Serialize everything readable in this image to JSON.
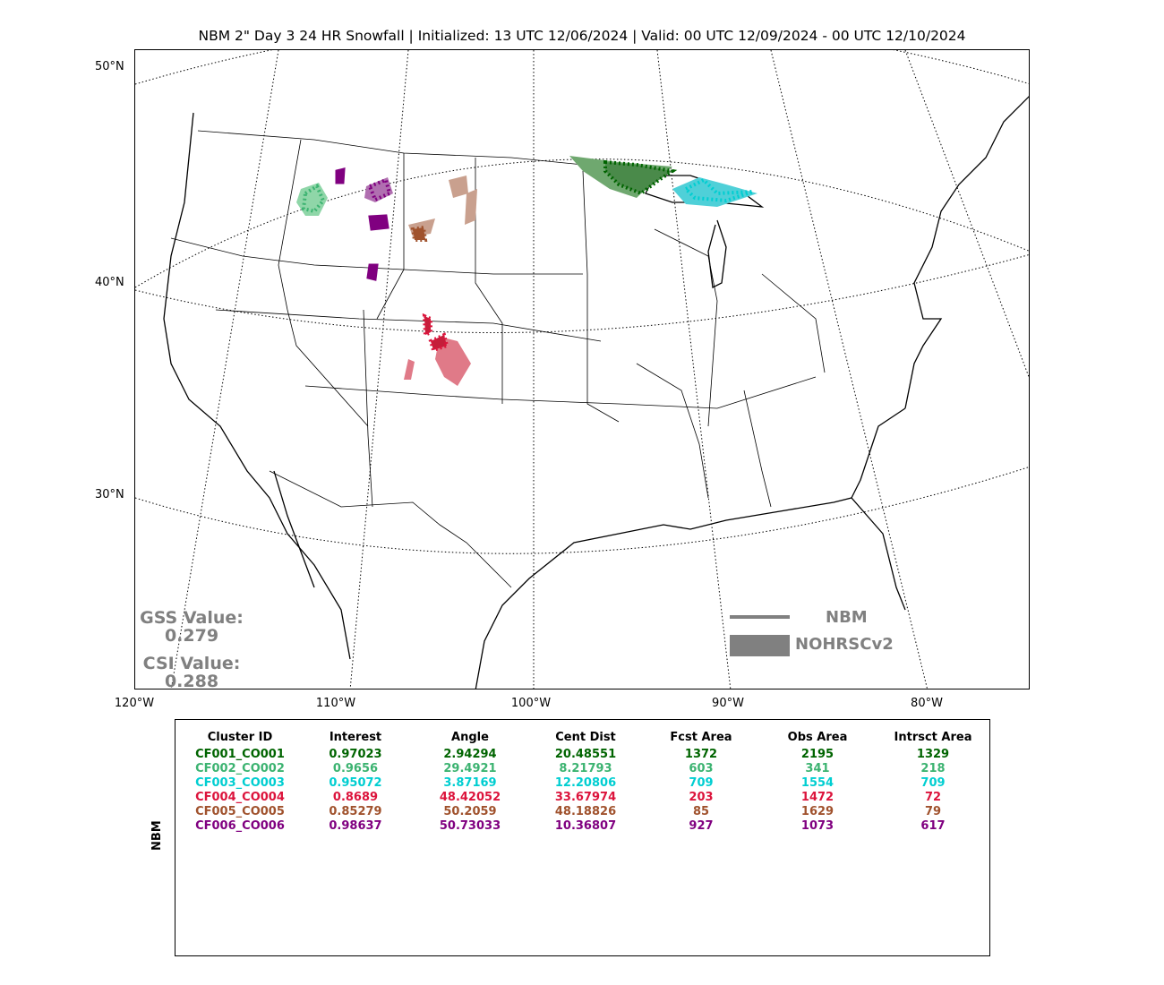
{
  "title": "NBM 2\" Day 3 24 HR Snowfall | Initialized: 13 UTC 12/06/2024 | Valid: 00 UTC 12/09/2024 - 00 UTC 12/10/2024",
  "lat_labels": [
    "50°N",
    "40°N",
    "30°N"
  ],
  "lon_labels": [
    "120°W",
    "110°W",
    "100°W",
    "90°W",
    "80°W"
  ],
  "scores": {
    "gss_label": "GSS Value:",
    "gss_value": "0.279",
    "csi_label": "CSI Value:",
    "csi_value": "0.288"
  },
  "legend": {
    "forecast_label": "NBM",
    "observed_label": "NOHRSCv2",
    "color": "#808080"
  },
  "table": {
    "side_label": "NBM",
    "headers": [
      "Cluster ID",
      "Interest",
      "Angle",
      "Cent Dist",
      "Fcst Area",
      "Obs Area",
      "Intrsct Area"
    ],
    "rows": [
      {
        "color": "#006400",
        "cells": [
          "CF001_CO001",
          "0.97023",
          "2.94294",
          "20.48551",
          "1372",
          "2195",
          "1329"
        ]
      },
      {
        "color": "#3cb371",
        "cells": [
          "CF002_CO002",
          "0.9656",
          "29.4921",
          "8.21793",
          "603",
          "341",
          "218"
        ]
      },
      {
        "color": "#00ced1",
        "cells": [
          "CF003_CO003",
          "0.95072",
          "3.87169",
          "12.20806",
          "709",
          "1554",
          "709"
        ]
      },
      {
        "color": "#dc143c",
        "cells": [
          "CF004_CO004",
          "0.8689",
          "48.42052",
          "33.67974",
          "203",
          "1472",
          "72"
        ]
      },
      {
        "color": "#a0522d",
        "cells": [
          "CF005_CO005",
          "0.85279",
          "50.2059",
          "48.18826",
          "85",
          "1629",
          "79"
        ]
      },
      {
        "color": "#800080",
        "cells": [
          "CF006_CO006",
          "0.98637",
          "50.73033",
          "10.36807",
          "927",
          "1073",
          "617"
        ]
      }
    ]
  },
  "clusters": [
    {
      "id": "CF001_CO001",
      "fill": "#2e7d32",
      "edge": "#006400"
    },
    {
      "id": "CF002_CO002",
      "fill": "#7ccf9a",
      "edge": "#3cb371"
    },
    {
      "id": "CF003_CO003",
      "fill": "#40d0d8",
      "edge": "#00ced1"
    },
    {
      "id": "CF004_CO004",
      "fill": "#e07080",
      "edge": "#dc143c"
    },
    {
      "id": "CF005_CO005",
      "fill": "#c0907a",
      "edge": "#a0522d"
    },
    {
      "id": "CF006_CO006",
      "fill": "#9b4d9b",
      "edge": "#800080"
    }
  ]
}
